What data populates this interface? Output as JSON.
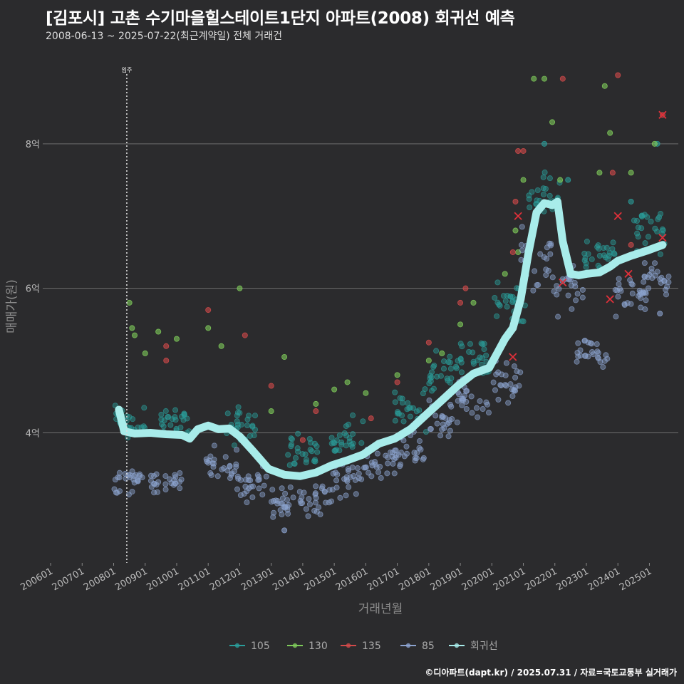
{
  "title": "[김포시] 고촌 수기마을힐스테이트1단지 아파트(2008) 회귀선 예측",
  "subtitle": "2008-06-13 ~ 2025-07-22(최근계약일) 전체 거래건",
  "credit": "©디아파트(dapt.kr) / 2025.07.31 / 자료=국토교통부 실거래가",
  "colors": {
    "background": "#2b2b2d",
    "grid": "#6e6e6e",
    "s105": "#2a9d9a",
    "s130": "#7ecb5a",
    "s135": "#d24a4a",
    "s85": "#8ca3cf",
    "regression": "#a8ecea",
    "cancel_marker": "#e0303a"
  },
  "chart_data": {
    "type": "scatter",
    "title": "[김포시] 고촌 수기마을힐스테이트1단지 아파트(2008) 회귀선 예측",
    "xlabel": "거래년월",
    "ylabel": "매매가(원)",
    "x_ticks": [
      "200601",
      "200701",
      "200801",
      "200901",
      "201001",
      "201101",
      "201201",
      "201301",
      "201401",
      "201501",
      "201601",
      "201701",
      "201801",
      "201901",
      "202001",
      "202101",
      "202201",
      "202301",
      "202401",
      "202501"
    ],
    "y_ticks": [
      {
        "value": 4.0,
        "label": "4억"
      },
      {
        "value": 6.0,
        "label": "6억"
      },
      {
        "value": 8.0,
        "label": "8억"
      }
    ],
    "xlim": [
      "2005-10",
      "2025-12"
    ],
    "ylim": [
      2.2,
      9.3
    ],
    "y_unit": "억",
    "annotation": {
      "x": "2008-06",
      "label": "입주"
    },
    "legend_position": "bottom",
    "legend": [
      "105",
      "130",
      "135",
      "85",
      "회귀선"
    ],
    "series": [
      {
        "name": "105",
        "color_key": "s105",
        "clusters": [
          {
            "x": "2008-07",
            "y": 4.15,
            "y_spread": 0.25
          },
          {
            "x": "2010-01",
            "y": 4.2,
            "y_spread": 0.25
          },
          {
            "x": "2012-01",
            "y": 4.1,
            "y_spread": 0.3
          },
          {
            "x": "2014-01",
            "y": 3.75,
            "y_spread": 0.3
          },
          {
            "x": "2015-06",
            "y": 3.95,
            "y_spread": 0.35
          },
          {
            "x": "2017-06",
            "y": 4.35,
            "y_spread": 0.35
          },
          {
            "x": "2018-06",
            "y": 4.85,
            "y_spread": 0.35
          },
          {
            "x": "2019-06",
            "y": 5.05,
            "y_spread": 0.3
          },
          {
            "x": "2020-08",
            "y": 5.8,
            "y_spread": 0.4
          },
          {
            "x": "2021-09",
            "y": 7.3,
            "y_spread": 0.35
          },
          {
            "x": "2023-06",
            "y": 6.45,
            "y_spread": 0.25
          },
          {
            "x": "2025-01",
            "y": 6.8,
            "y_spread": 0.35
          }
        ],
        "points": [
          [
            "2021-09",
            8.0
          ],
          [
            "2025-04",
            8.0
          ],
          [
            "2022-06",
            7.5
          ],
          [
            "2024-06",
            7.2
          ]
        ]
      },
      {
        "name": "130",
        "color_key": "s130",
        "points": [
          [
            "2008-07",
            5.8
          ],
          [
            "2008-08",
            5.45
          ],
          [
            "2008-09",
            5.35
          ],
          [
            "2009-01",
            5.1
          ],
          [
            "2009-06",
            5.4
          ],
          [
            "2010-01",
            5.3
          ],
          [
            "2011-01",
            5.45
          ],
          [
            "2011-06",
            5.2
          ],
          [
            "2012-01",
            6.0
          ],
          [
            "2013-01",
            4.3
          ],
          [
            "2013-06",
            5.05
          ],
          [
            "2014-06",
            4.4
          ],
          [
            "2015-01",
            4.6
          ],
          [
            "2015-06",
            4.7
          ],
          [
            "2016-01",
            4.55
          ],
          [
            "2017-01",
            4.8
          ],
          [
            "2018-01",
            5.0
          ],
          [
            "2018-06",
            5.1
          ],
          [
            "2019-01",
            5.5
          ],
          [
            "2019-06",
            5.8
          ],
          [
            "2020-06",
            6.2
          ],
          [
            "2020-11",
            6.5
          ],
          [
            "2021-01",
            7.5
          ],
          [
            "2021-05",
            8.9
          ],
          [
            "2021-09",
            8.9
          ],
          [
            "2021-12",
            8.3
          ],
          [
            "2022-03",
            7.5
          ],
          [
            "2023-06",
            7.6
          ],
          [
            "2023-08",
            8.8
          ],
          [
            "2023-10",
            8.15
          ],
          [
            "2024-06",
            7.6
          ],
          [
            "2025-03",
            8.0
          ],
          [
            "2020-10",
            6.8
          ]
        ]
      },
      {
        "name": "135",
        "color_key": "s135",
        "points": [
          [
            "2009-09",
            5.2
          ],
          [
            "2009-09",
            5.0
          ],
          [
            "2011-01",
            5.7
          ],
          [
            "2012-03",
            5.35
          ],
          [
            "2013-01",
            4.65
          ],
          [
            "2014-01",
            3.9
          ],
          [
            "2014-06",
            4.3
          ],
          [
            "2016-03",
            4.2
          ],
          [
            "2017-01",
            4.7
          ],
          [
            "2018-01",
            5.25
          ],
          [
            "2019-01",
            5.8
          ],
          [
            "2019-03",
            6.0
          ],
          [
            "2020-09",
            6.5
          ],
          [
            "2020-10",
            7.2
          ],
          [
            "2020-11",
            7.9
          ],
          [
            "2021-01",
            7.9
          ],
          [
            "2022-04",
            8.9
          ],
          [
            "2024-01",
            8.95
          ],
          [
            "2023-11",
            7.6
          ],
          [
            "2024-06",
            6.6
          ],
          [
            "2025-06",
            8.4
          ]
        ]
      },
      {
        "name": "85",
        "color_key": "s85",
        "clusters": [
          {
            "x": "2008-07",
            "y": 3.35,
            "y_spread": 0.25
          },
          {
            "x": "2009-09",
            "y": 3.3,
            "y_spread": 0.2
          },
          {
            "x": "2011-06",
            "y": 3.6,
            "y_spread": 0.25
          },
          {
            "x": "2012-06",
            "y": 3.3,
            "y_spread": 0.3
          },
          {
            "x": "2013-06",
            "y": 3.05,
            "y_spread": 0.3
          },
          {
            "x": "2014-06",
            "y": 3.1,
            "y_spread": 0.3
          },
          {
            "x": "2015-06",
            "y": 3.35,
            "y_spread": 0.3
          },
          {
            "x": "2016-06",
            "y": 3.55,
            "y_spread": 0.3
          },
          {
            "x": "2017-06",
            "y": 3.75,
            "y_spread": 0.3
          },
          {
            "x": "2018-06",
            "y": 4.2,
            "y_spread": 0.3
          },
          {
            "x": "2019-06",
            "y": 4.5,
            "y_spread": 0.3
          },
          {
            "x": "2020-06",
            "y": 4.7,
            "y_spread": 0.35
          },
          {
            "x": "2021-06",
            "y": 6.4,
            "y_spread": 0.5
          },
          {
            "x": "2022-06",
            "y": 6.0,
            "y_spread": 0.4
          },
          {
            "x": "2023-03",
            "y": 5.1,
            "y_spread": 0.25
          },
          {
            "x": "2024-06",
            "y": 5.9,
            "y_spread": 0.35
          },
          {
            "x": "2025-03",
            "y": 6.1,
            "y_spread": 0.3
          }
        ],
        "points": [
          [
            "2013-06",
            2.65
          ],
          [
            "2025-05",
            5.65
          ]
        ]
      }
    ],
    "cancelled_deals": [
      [
        "2020-09",
        5.05
      ],
      [
        "2020-11",
        7.0
      ],
      [
        "2022-04",
        6.08
      ],
      [
        "2023-10",
        5.85
      ],
      [
        "2024-01",
        7.0
      ],
      [
        "2024-05",
        6.2
      ],
      [
        "2025-06",
        8.4
      ],
      [
        "2025-06",
        6.7
      ]
    ],
    "regression": {
      "name": "회귀선",
      "points": [
        [
          "2008-03",
          4.32
        ],
        [
          "2008-05",
          4.02
        ],
        [
          "2008-09",
          3.99
        ],
        [
          "2009-03",
          4.0
        ],
        [
          "2009-09",
          3.98
        ],
        [
          "2010-03",
          3.97
        ],
        [
          "2010-06",
          3.92
        ],
        [
          "2010-09",
          4.05
        ],
        [
          "2011-01",
          4.1
        ],
        [
          "2011-05",
          4.05
        ],
        [
          "2011-09",
          4.06
        ],
        [
          "2012-01",
          3.95
        ],
        [
          "2012-06",
          3.75
        ],
        [
          "2012-12",
          3.5
        ],
        [
          "2013-06",
          3.42
        ],
        [
          "2013-12",
          3.4
        ],
        [
          "2014-06",
          3.45
        ],
        [
          "2014-12",
          3.55
        ],
        [
          "2015-06",
          3.62
        ],
        [
          "2015-12",
          3.7
        ],
        [
          "2016-06",
          3.85
        ],
        [
          "2016-12",
          3.92
        ],
        [
          "2017-06",
          4.05
        ],
        [
          "2017-12",
          4.25
        ],
        [
          "2018-06",
          4.45
        ],
        [
          "2018-12",
          4.65
        ],
        [
          "2019-06",
          4.82
        ],
        [
          "2019-12",
          4.9
        ],
        [
          "2020-03",
          5.1
        ],
        [
          "2020-06",
          5.3
        ],
        [
          "2020-09",
          5.45
        ],
        [
          "2020-12",
          5.85
        ],
        [
          "2021-03",
          6.5
        ],
        [
          "2021-06",
          7.05
        ],
        [
          "2021-09",
          7.18
        ],
        [
          "2021-12",
          7.15
        ],
        [
          "2022-02",
          7.2
        ],
        [
          "2022-04",
          6.65
        ],
        [
          "2022-07",
          6.2
        ],
        [
          "2022-10",
          6.18
        ],
        [
          "2023-01",
          6.2
        ],
        [
          "2023-06",
          6.22
        ],
        [
          "2023-10",
          6.3
        ],
        [
          "2024-01",
          6.38
        ],
        [
          "2024-06",
          6.45
        ],
        [
          "2024-12",
          6.52
        ],
        [
          "2025-06",
          6.6
        ]
      ]
    }
  }
}
